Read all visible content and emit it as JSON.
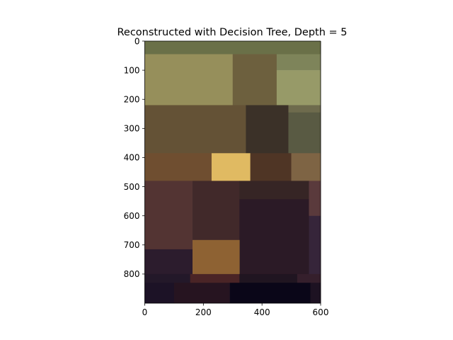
{
  "chart_data": {
    "type": "heatmap",
    "title": "Reconstructed with Decision Tree, Depth = 5",
    "xlabel": "",
    "ylabel": "",
    "xlim": [
      0,
      600
    ],
    "ylim": [
      900,
      0
    ],
    "x_ticks": [
      0,
      200,
      400,
      600
    ],
    "y_ticks": [
      0,
      100,
      200,
      300,
      400,
      500,
      600,
      700,
      800
    ],
    "grid": false,
    "legend": "none",
    "regions": [
      {
        "x0": 0,
        "x1": 600,
        "y0": 0,
        "y1": 45,
        "color": "#6a7048"
      },
      {
        "x0": 0,
        "x1": 300,
        "y0": 45,
        "y1": 220,
        "color": "#968f5b"
      },
      {
        "x0": 300,
        "x1": 450,
        "y0": 45,
        "y1": 220,
        "color": "#6d603e"
      },
      {
        "x0": 450,
        "x1": 600,
        "y0": 45,
        "y1": 100,
        "color": "#7e845a"
      },
      {
        "x0": 450,
        "x1": 600,
        "y0": 100,
        "y1": 220,
        "color": "#979a68"
      },
      {
        "x0": 0,
        "x1": 345,
        "y0": 220,
        "y1": 385,
        "color": "#645236"
      },
      {
        "x0": 345,
        "x1": 490,
        "y0": 220,
        "y1": 385,
        "color": "#3b3128"
      },
      {
        "x0": 490,
        "x1": 600,
        "y0": 220,
        "y1": 245,
        "color": "#6e6b4d"
      },
      {
        "x0": 490,
        "x1": 600,
        "y0": 245,
        "y1": 385,
        "color": "#595a43"
      },
      {
        "x0": 0,
        "x1": 228,
        "y0": 385,
        "y1": 480,
        "color": "#6f4e30"
      },
      {
        "x0": 228,
        "x1": 360,
        "y0": 385,
        "y1": 480,
        "color": "#e0ba62"
      },
      {
        "x0": 360,
        "x1": 500,
        "y0": 385,
        "y1": 480,
        "color": "#4f3525"
      },
      {
        "x0": 500,
        "x1": 600,
        "y0": 385,
        "y1": 480,
        "color": "#7e6444"
      },
      {
        "x0": 0,
        "x1": 163,
        "y0": 480,
        "y1": 715,
        "color": "#533433"
      },
      {
        "x0": 163,
        "x1": 323,
        "y0": 480,
        "y1": 683,
        "color": "#41292a"
      },
      {
        "x0": 323,
        "x1": 560,
        "y0": 480,
        "y1": 543,
        "color": "#362525"
      },
      {
        "x0": 323,
        "x1": 560,
        "y0": 543,
        "y1": 800,
        "color": "#2b1a26"
      },
      {
        "x0": 560,
        "x1": 600,
        "y0": 480,
        "y1": 600,
        "color": "#5a3a3c"
      },
      {
        "x0": 560,
        "x1": 600,
        "y0": 600,
        "y1": 800,
        "color": "#36253a"
      },
      {
        "x0": 0,
        "x1": 163,
        "y0": 715,
        "y1": 800,
        "color": "#2c1c2d"
      },
      {
        "x0": 163,
        "x1": 323,
        "y0": 683,
        "y1": 800,
        "color": "#8e6233"
      },
      {
        "x0": 0,
        "x1": 155,
        "y0": 800,
        "y1": 830,
        "color": "#231829"
      },
      {
        "x0": 155,
        "x1": 323,
        "y0": 800,
        "y1": 830,
        "color": "#4a2426"
      },
      {
        "x0": 323,
        "x1": 520,
        "y0": 800,
        "y1": 830,
        "color": "#201521"
      },
      {
        "x0": 520,
        "x1": 600,
        "y0": 800,
        "y1": 830,
        "color": "#351f2c"
      },
      {
        "x0": 0,
        "x1": 100,
        "y0": 830,
        "y1": 900,
        "color": "#1c1226"
      },
      {
        "x0": 100,
        "x1": 290,
        "y0": 830,
        "y1": 900,
        "color": "#261420"
      },
      {
        "x0": 290,
        "x1": 565,
        "y0": 830,
        "y1": 900,
        "color": "#0a0618"
      },
      {
        "x0": 565,
        "x1": 600,
        "y0": 830,
        "y1": 900,
        "color": "#1d1222"
      }
    ]
  }
}
